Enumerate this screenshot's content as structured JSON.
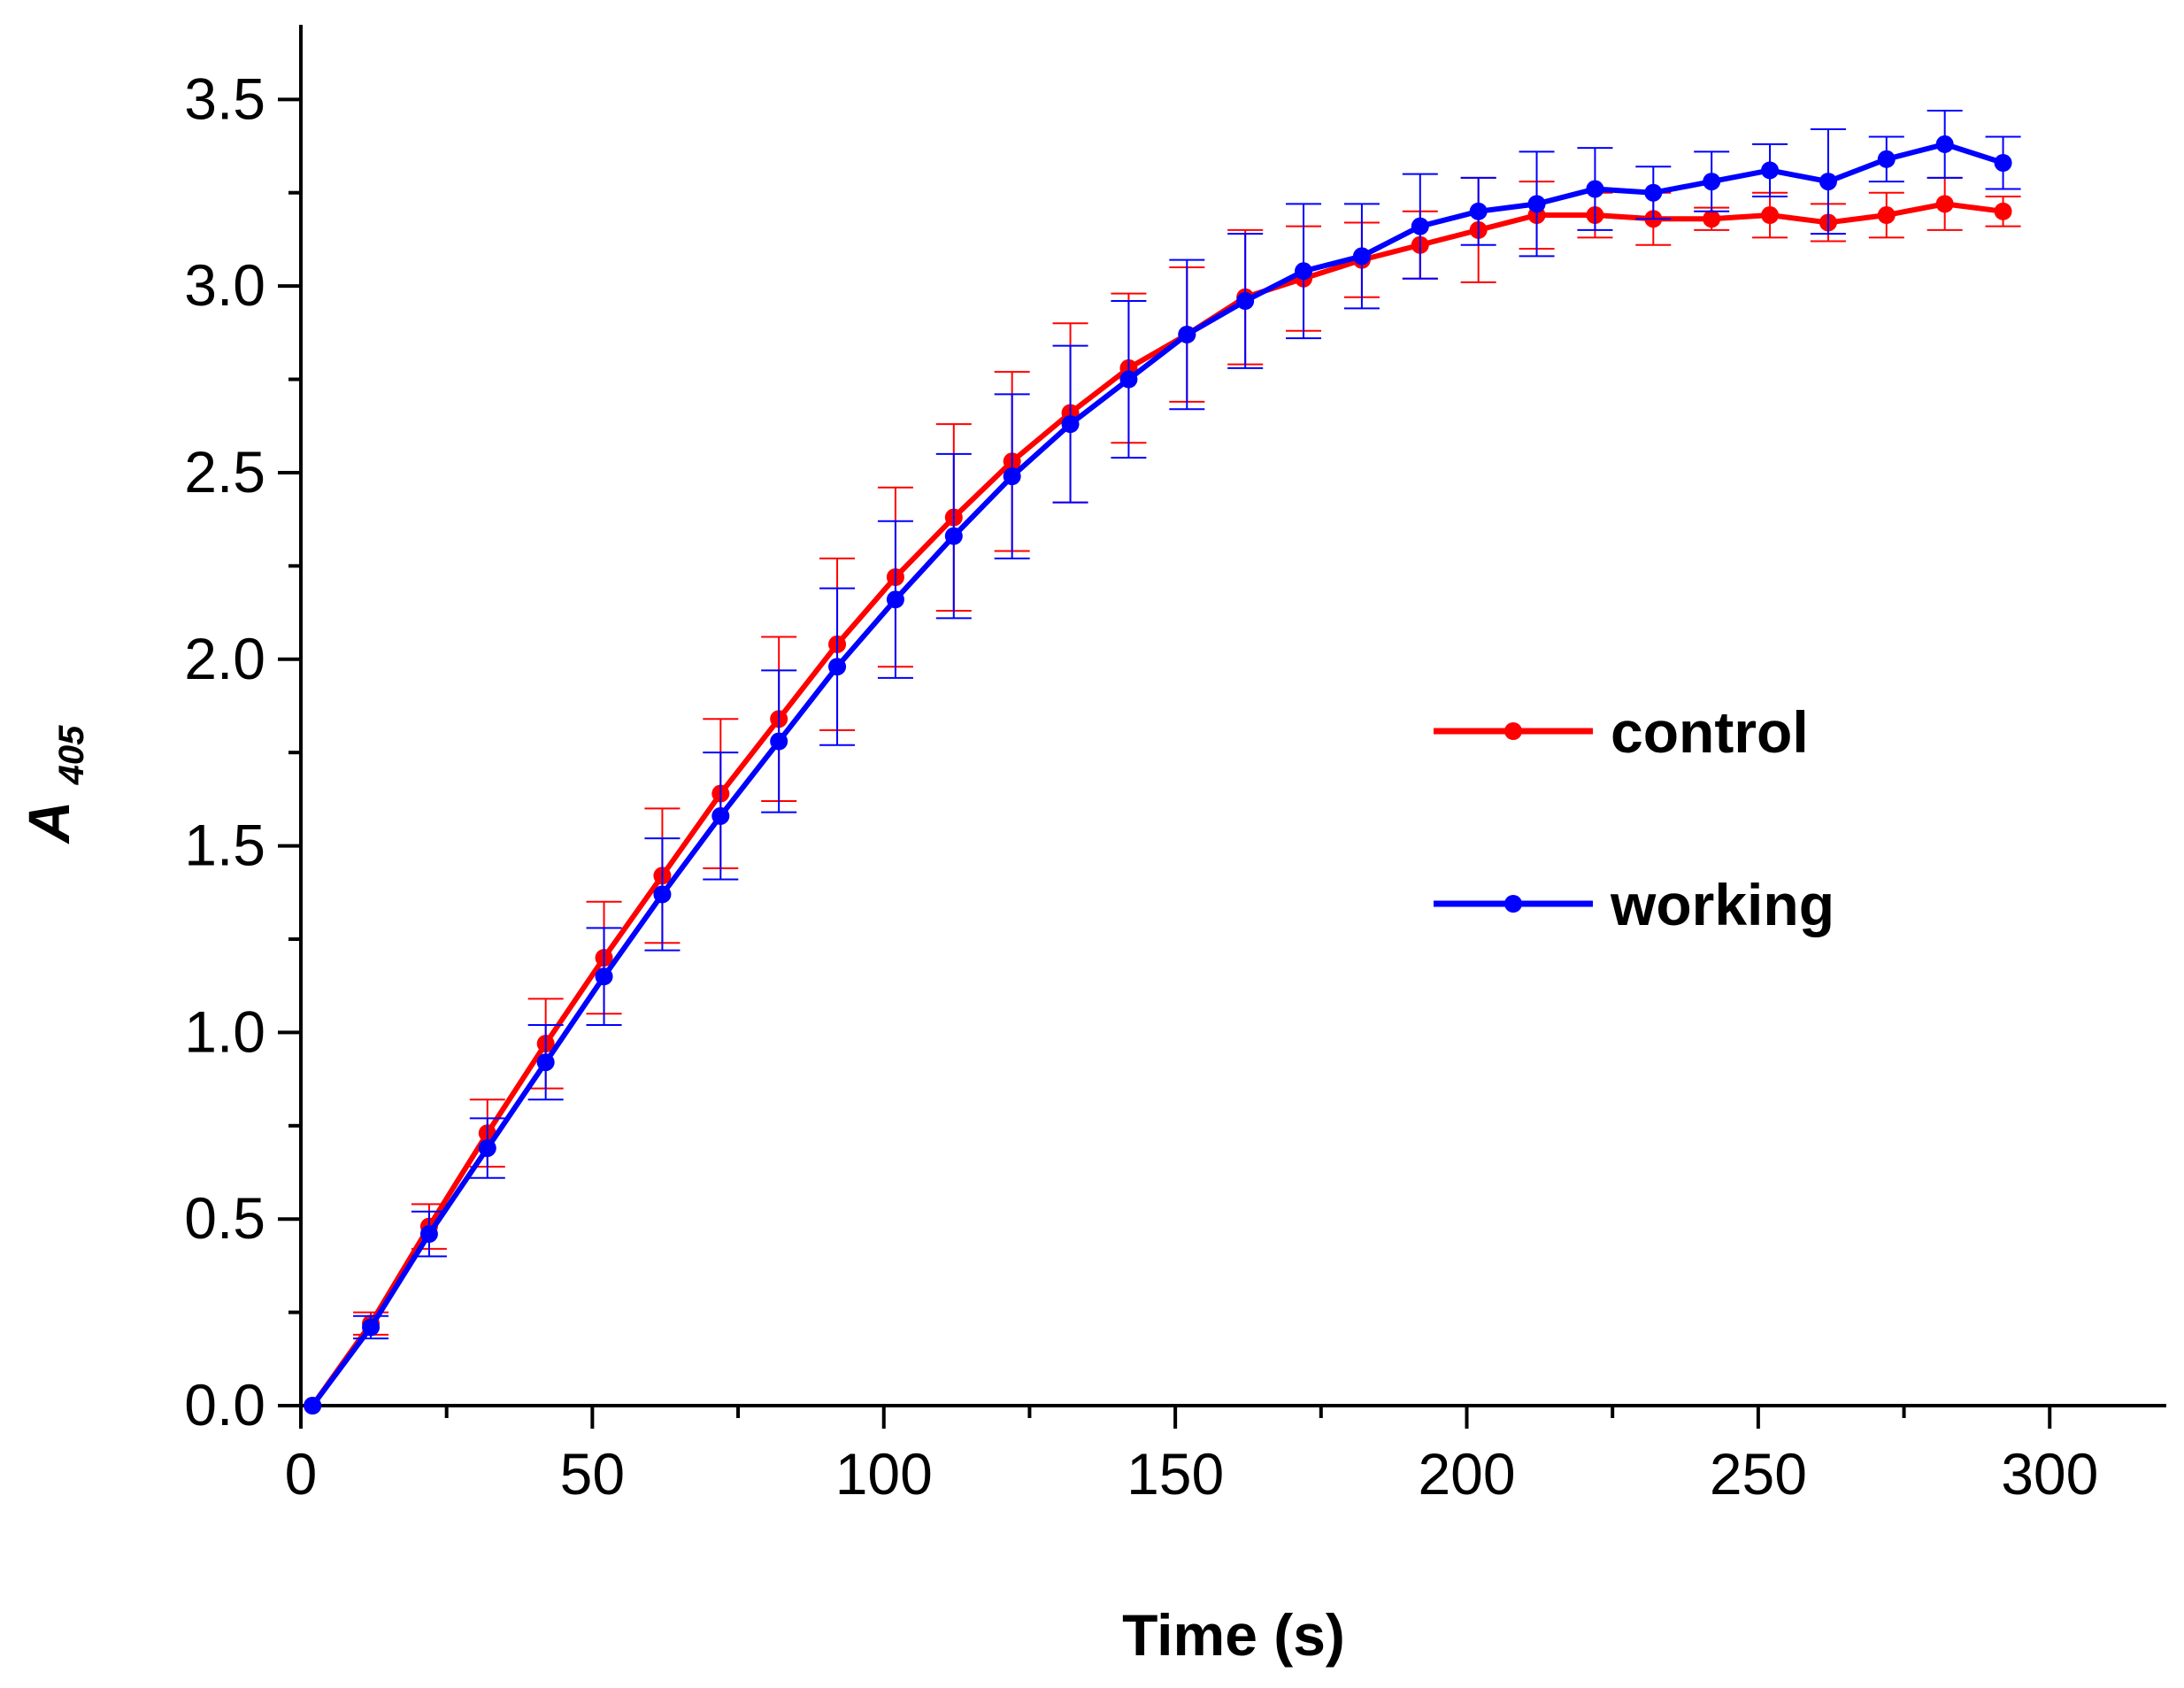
{
  "chart_data": {
    "type": "line",
    "title": "",
    "xlabel": "Time (s)",
    "ylabel_main": "A",
    "ylabel_sub": "405",
    "xlim": [
      0,
      320
    ],
    "ylim": [
      0,
      3.7
    ],
    "x_ticks": [
      "0",
      "50",
      "100",
      "150",
      "200",
      "250",
      "300"
    ],
    "y_ticks": [
      "0.0",
      "0.5",
      "1.0",
      "1.5",
      "2.0",
      "2.5",
      "3.0",
      "3.5"
    ],
    "x": [
      2,
      12,
      22,
      32,
      42,
      52,
      62,
      72,
      82,
      92,
      102,
      112,
      122,
      132,
      142,
      152,
      162,
      172,
      182,
      192,
      202,
      212,
      222,
      232,
      242,
      252,
      262,
      272,
      282,
      292
    ],
    "series": [
      {
        "name": "control",
        "color": "#ff0000",
        "values": [
          0.0,
          0.22,
          0.48,
          0.73,
          0.97,
          1.2,
          1.42,
          1.64,
          1.84,
          2.04,
          2.22,
          2.38,
          2.53,
          2.66,
          2.78,
          2.87,
          2.97,
          3.02,
          3.07,
          3.11,
          3.15,
          3.19,
          3.19,
          3.18,
          3.18,
          3.19,
          3.17,
          3.19,
          3.22,
          3.2
        ],
        "errors": [
          0.0,
          0.03,
          0.06,
          0.09,
          0.12,
          0.15,
          0.18,
          0.2,
          0.22,
          0.23,
          0.24,
          0.25,
          0.24,
          0.24,
          0.2,
          0.18,
          0.18,
          0.14,
          0.1,
          0.09,
          0.14,
          0.09,
          0.06,
          0.07,
          0.03,
          0.06,
          0.05,
          0.06,
          0.07,
          0.04
        ]
      },
      {
        "name": "working",
        "color": "#0000ff",
        "values": [
          0.0,
          0.21,
          0.46,
          0.69,
          0.92,
          1.15,
          1.37,
          1.58,
          1.78,
          1.98,
          2.16,
          2.33,
          2.49,
          2.63,
          2.75,
          2.87,
          2.96,
          3.04,
          3.08,
          3.16,
          3.2,
          3.22,
          3.26,
          3.25,
          3.28,
          3.31,
          3.28,
          3.34,
          3.38,
          3.33
        ],
        "errors": [
          0.0,
          0.03,
          0.06,
          0.08,
          0.1,
          0.13,
          0.15,
          0.17,
          0.19,
          0.21,
          0.21,
          0.22,
          0.22,
          0.21,
          0.21,
          0.2,
          0.18,
          0.18,
          0.14,
          0.14,
          0.09,
          0.14,
          0.11,
          0.07,
          0.08,
          0.07,
          0.14,
          0.06,
          0.09,
          0.07
        ]
      }
    ],
    "legend": {
      "placement": "center-right",
      "entries": [
        "control",
        "working"
      ]
    }
  }
}
